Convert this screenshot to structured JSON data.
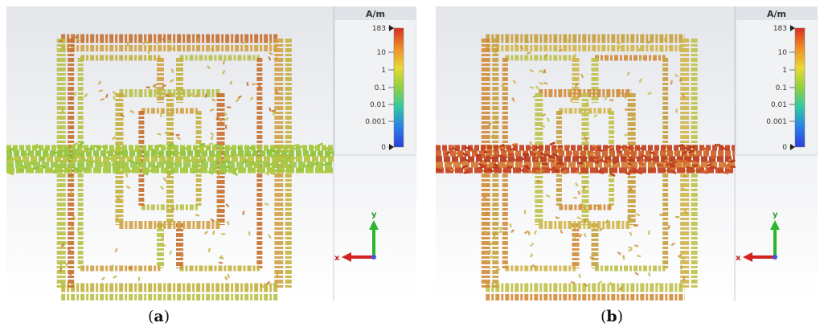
{
  "panels": [
    {
      "id": "a",
      "caption_open": "(",
      "caption_letter": "a",
      "caption_close": ")",
      "legend": {
        "unit": "A/m",
        "ticks": [
          "183",
          "10",
          "1",
          "0.1",
          "0.01",
          "0.001",
          "0"
        ]
      },
      "axes": {
        "y_label": "y",
        "x_label": "x"
      },
      "strip_colors": [
        "#a5c93a",
        "#8fc43c",
        "#b7c53f",
        "#9cc84a"
      ],
      "loop_colors": [
        "#c8702f",
        "#d2a145",
        "#c4b23f",
        "#b9c24a"
      ]
    },
    {
      "id": "b",
      "caption_open": "(",
      "caption_letter": "b",
      "caption_close": ")",
      "legend": {
        "unit": "A/m",
        "ticks": [
          "183",
          "10",
          "1",
          "0.1",
          "0.01",
          "0.001",
          "0"
        ]
      },
      "axes": {
        "y_label": "y",
        "x_label": "x"
      },
      "strip_colors": [
        "#c5401f",
        "#d0602a",
        "#b8391c",
        "#d67a33"
      ],
      "loop_colors": [
        "#c7a03e",
        "#d1b54a",
        "#bfc24b",
        "#d28b39"
      ]
    }
  ],
  "colorbar_stops": [
    "#d62f1f",
    "#ef8f2a",
    "#e8d934",
    "#8fd143",
    "#30c9a4",
    "#2a7ee8",
    "#2b3fd9"
  ]
}
